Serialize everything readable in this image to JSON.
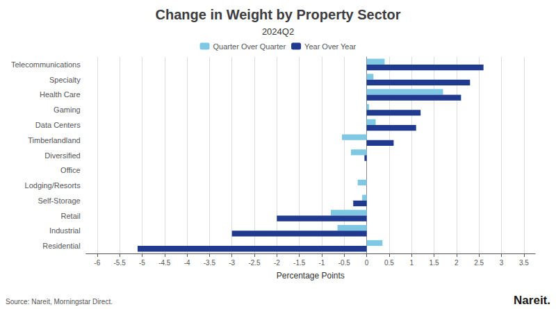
{
  "chart_data": {
    "type": "bar",
    "orientation": "horizontal",
    "title": "Change in Weight by Property Sector",
    "subtitle": "2024Q2",
    "xlabel": "Percentage Points",
    "annotations": [
      "Source: Nareit, Morningstar Direct.",
      "Nareit."
    ],
    "categories": [
      "Residential",
      "Industrial",
      "Retail",
      "Self-Storage",
      "Lodging/Resorts",
      "Office",
      "Diversified",
      "Timberlandland",
      "Data Centers",
      "Gaming",
      "Health Care",
      "Specialty",
      "Telecommunications"
    ],
    "series": [
      {
        "name": "Quarter Over Quarter",
        "color": "#7EC8E3",
        "values": [
          0.35,
          -0.65,
          -0.8,
          -0.1,
          -0.2,
          0.0,
          -0.35,
          -0.55,
          0.2,
          0.05,
          1.7,
          0.15,
          0.4
        ]
      },
      {
        "name": "Year Over Year",
        "color": "#1F3A8F",
        "values": [
          -5.1,
          -3.0,
          -2.0,
          -0.3,
          0.0,
          0.0,
          -0.05,
          0.6,
          1.1,
          1.2,
          2.1,
          2.3,
          2.6
        ]
      }
    ],
    "xlim": [
      -6.25,
      3.75
    ],
    "xticks": [
      -6,
      -5.5,
      -5,
      -4.5,
      -4,
      -3.5,
      -3,
      -2.5,
      -2,
      -1.5,
      -1,
      -0.5,
      0,
      0.5,
      1,
      1.5,
      2,
      2.5,
      3,
      3.5
    ],
    "grid": true,
    "legend": "top"
  }
}
